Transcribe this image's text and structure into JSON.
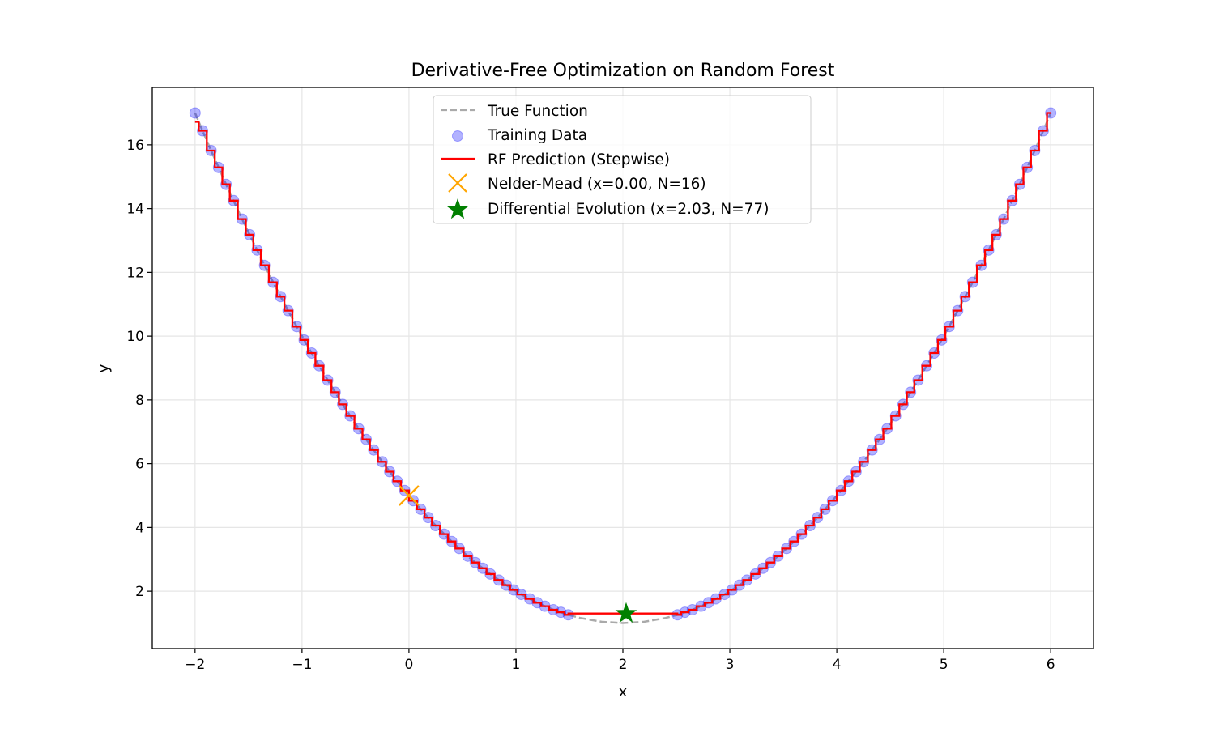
{
  "chart_data": {
    "type": "scatter",
    "title": "Derivative-Free Optimization on Random Forest",
    "xlabel": "x",
    "ylabel": "y",
    "xlim": [
      -2.4,
      6.4
    ],
    "ylim": [
      0.2,
      17.8
    ],
    "xticks": [
      -2,
      -1,
      0,
      1,
      2,
      3,
      4,
      5,
      6
    ],
    "xtick_labels": [
      "−2",
      "−1",
      "0",
      "1",
      "2",
      "3",
      "4",
      "5",
      "6"
    ],
    "yticks": [
      2,
      4,
      6,
      8,
      10,
      12,
      14,
      16
    ],
    "ytick_labels": [
      "2",
      "4",
      "6",
      "8",
      "10",
      "12",
      "14",
      "16"
    ],
    "grid": true,
    "legend_placement": "upper-center",
    "legend": [
      "True Function",
      "Training Data",
      "RF Prediction (Stepwise)",
      "Nelder-Mead (x=0.00, N=16)",
      "Differential Evolution (x=2.03, N=77)"
    ],
    "colors": {
      "true_function": "#aaaaaa",
      "training": "#0000ff",
      "rf": "#ff0000",
      "nelder_mead": "#ffa500",
      "de": "#008000"
    },
    "training_data": {
      "x": [
        -2.0,
        -1.93,
        -1.85,
        -1.78,
        -1.71,
        -1.64,
        -1.56,
        -1.49,
        -1.42,
        -1.35,
        -1.27,
        -1.2,
        -1.13,
        -1.05,
        -0.98,
        -0.91,
        -0.84,
        -0.76,
        -0.69,
        -0.62,
        -0.55,
        -0.47,
        -0.4,
        -0.33,
        -0.25,
        -0.18,
        -0.11,
        -0.04,
        0.04,
        0.11,
        0.18,
        0.25,
        0.33,
        0.4,
        0.47,
        0.55,
        0.62,
        0.69,
        0.76,
        0.84,
        0.91,
        0.98,
        1.05,
        1.13,
        1.2,
        1.27,
        1.35,
        1.42,
        1.49,
        2.51,
        2.58,
        2.65,
        2.73,
        2.8,
        2.87,
        2.95,
        3.02,
        3.09,
        3.16,
        3.24,
        3.31,
        3.38,
        3.45,
        3.53,
        3.6,
        3.67,
        3.75,
        3.82,
        3.89,
        3.96,
        4.04,
        4.11,
        4.18,
        4.25,
        4.33,
        4.4,
        4.47,
        4.55,
        4.62,
        4.69,
        4.76,
        4.84,
        4.91,
        4.98,
        5.05,
        5.13,
        5.2,
        5.27,
        5.35,
        5.42,
        5.49,
        5.56,
        5.64,
        5.71,
        5.78,
        5.85,
        5.93,
        6.0
      ],
      "y": [
        17.0,
        16.44,
        15.82,
        15.29,
        14.76,
        14.25,
        13.67,
        13.18,
        12.7,
        12.22,
        11.69,
        11.24,
        10.8,
        10.3,
        9.88,
        9.47,
        9.07,
        8.62,
        8.24,
        7.86,
        7.5,
        7.1,
        6.76,
        6.43,
        6.06,
        5.75,
        5.45,
        5.16,
        4.84,
        4.57,
        4.31,
        4.06,
        3.79,
        3.56,
        3.34,
        3.1,
        2.9,
        2.72,
        2.54,
        2.35,
        2.19,
        2.04,
        1.9,
        1.76,
        1.64,
        1.53,
        1.42,
        1.34,
        1.26,
        1.26,
        1.34,
        1.42,
        1.53,
        1.64,
        1.76,
        1.9,
        2.04,
        2.19,
        2.35,
        2.54,
        2.72,
        2.9,
        3.1,
        3.34,
        3.56,
        3.79,
        4.06,
        4.31,
        4.57,
        4.84,
        5.16,
        5.45,
        5.75,
        6.06,
        6.43,
        6.76,
        7.1,
        7.5,
        7.86,
        8.24,
        8.62,
        9.07,
        9.47,
        9.88,
        10.3,
        10.8,
        11.24,
        11.69,
        12.22,
        12.7,
        13.18,
        13.67,
        14.25,
        14.76,
        15.29,
        15.82,
        16.44,
        17.0
      ]
    },
    "true_function_gap": {
      "x": [
        1.6,
        1.8,
        2.0,
        2.2,
        2.4
      ],
      "y": [
        1.16,
        1.04,
        1.0,
        1.04,
        1.16
      ]
    },
    "rf_gap_value": 1.3,
    "nelder_mead": {
      "x": 0.0,
      "y": 5.0
    },
    "differential_evolution": {
      "x": 2.03,
      "y": 1.3
    }
  }
}
